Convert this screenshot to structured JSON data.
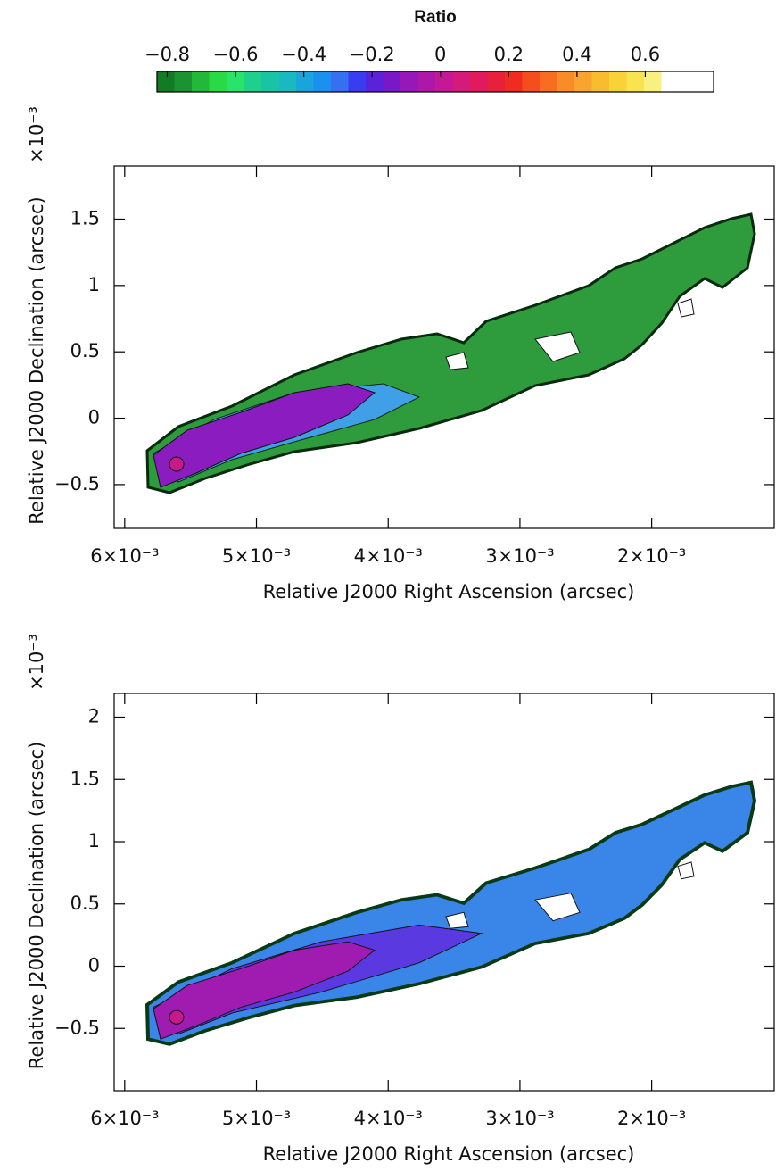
{
  "chart_data": [
    {
      "type": "colorbar",
      "title": "Ratio",
      "xlim": [
        -0.83,
        0.8
      ],
      "xticks": [
        {
          "value": -0.8,
          "label": "−0.8"
        },
        {
          "value": -0.6,
          "label": "−0.6"
        },
        {
          "value": -0.4,
          "label": "−0.4"
        },
        {
          "value": -0.2,
          "label": "−0.2"
        },
        0,
        0.2,
        0.4,
        0.6
      ],
      "colors": [
        "#137a25",
        "#1a9330",
        "#22b83a",
        "#2ada45",
        "#28e46a",
        "#1fd08c",
        "#19c4a4",
        "#1ab8c0",
        "#1aa4dc",
        "#1a90f0",
        "#3470f0",
        "#3a3cf2",
        "#5a22da",
        "#7a18c8",
        "#9618b8",
        "#ae18a8",
        "#c41898",
        "#d41a7c",
        "#e01a5c",
        "#e8203c",
        "#f02c20",
        "#f44e1e",
        "#f76e20",
        "#f88c28",
        "#f8a42e",
        "#f8bc30",
        "#f8d236",
        "#f8e450",
        "#f8f080",
        "#ffffff",
        "#ffffff",
        "#ffffff"
      ]
    },
    {
      "type": "image",
      "xlabel": "Relative J2000 Right Ascension (arcsec)",
      "ylabel": "Relative J2000 Declination (arcsec)",
      "yunit": "×10⁻³",
      "xlim": [
        0.00608,
        0.00107
      ],
      "ylim": [
        -0.83,
        1.9
      ],
      "xticks": [
        {
          "value": 0.006,
          "label": "6×10⁻³"
        },
        {
          "value": 0.005,
          "label": "5×10⁻³"
        },
        {
          "value": 0.004,
          "label": "4×10⁻³"
        },
        {
          "value": 0.003,
          "label": "3×10⁻³"
        },
        {
          "value": 0.002,
          "label": "2×10⁻³"
        }
      ],
      "yticks": [
        {
          "value": -0.5,
          "label": "−0.5"
        },
        0,
        0.5,
        1,
        1.5
      ]
    },
    {
      "type": "image",
      "xlabel": "Relative J2000 Right Ascension (arcsec)",
      "ylabel": "Relative J2000 Declination (arcsec)",
      "yunit": "×10⁻³",
      "xlim": [
        0.00608,
        0.00107
      ],
      "ylim": [
        -1.0,
        2.19
      ],
      "xticks": [
        {
          "value": 0.006,
          "label": "6×10⁻³"
        },
        {
          "value": 0.005,
          "label": "5×10⁻³"
        },
        {
          "value": 0.004,
          "label": "4×10⁻³"
        },
        {
          "value": 0.003,
          "label": "3×10⁻³"
        },
        {
          "value": 0.002,
          "label": "2×10⁻³"
        }
      ],
      "yticks": [
        {
          "value": -0.5,
          "label": "−0.5"
        },
        0,
        0.5,
        1,
        1.5,
        2
      ]
    }
  ]
}
